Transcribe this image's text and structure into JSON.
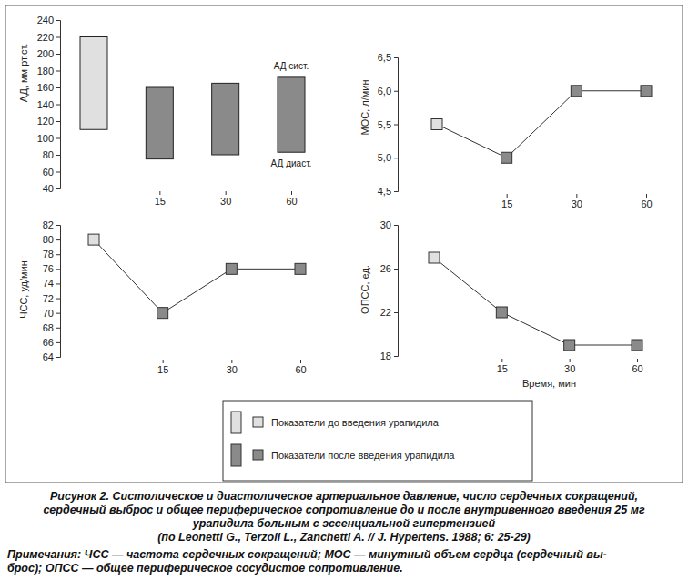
{
  "chart_data": [
    {
      "type": "range_bar",
      "ylabel": "АД, мм рт.ст.",
      "categories": [
        null,
        "15",
        "30",
        "60"
      ],
      "series": [
        {
          "name": "АД сист.",
          "values": [
            220,
            160,
            165,
            172
          ]
        },
        {
          "name": "АД диаст.",
          "values": [
            110,
            75,
            80,
            83
          ]
        }
      ],
      "colors": [
        "#e0e0e0",
        "#8a8a8a",
        "#8a8a8a",
        "#8a8a8a"
      ],
      "ylim": [
        40,
        240
      ],
      "yticks": [
        40,
        60,
        80,
        100,
        120,
        140,
        160,
        180,
        200,
        220,
        240
      ]
    },
    {
      "type": "line",
      "ylabel": "МОС, л/мин",
      "categories": [
        null,
        "15",
        "30",
        "60"
      ],
      "values": [
        5.5,
        5.0,
        6.0,
        6.0
      ],
      "colors": [
        "#e0e0e0",
        "#8a8a8a",
        "#8a8a8a",
        "#8a8a8a"
      ],
      "marker": "square",
      "ylim": [
        4.5,
        6.5
      ],
      "yticks": [
        {
          "value": 4.5,
          "label": "4,5"
        },
        {
          "value": 5.0,
          "label": "5,0"
        },
        {
          "value": 5.5,
          "label": "5,5"
        },
        {
          "value": 6.0,
          "label": "6,0"
        },
        {
          "value": 6.5,
          "label": "6,5"
        }
      ]
    },
    {
      "type": "line",
      "ylabel": "ЧСС, уд/мин",
      "categories": [
        null,
        "15",
        "30",
        "60"
      ],
      "values": [
        80,
        70,
        76,
        76
      ],
      "colors": [
        "#e0e0e0",
        "#8a8a8a",
        "#8a8a8a",
        "#8a8a8a"
      ],
      "marker": "square",
      "ylim": [
        64,
        82
      ],
      "yticks": [
        64,
        66,
        68,
        70,
        72,
        74,
        76,
        78,
        80,
        82
      ]
    },
    {
      "type": "line",
      "ylabel": "ОПСС, ед.",
      "xlabel": "Время, мин",
      "categories": [
        null,
        "15",
        "30",
        "60"
      ],
      "values": [
        27,
        22,
        19,
        19
      ],
      "colors": [
        "#e0e0e0",
        "#8a8a8a",
        "#8a8a8a",
        "#8a8a8a"
      ],
      "marker": "square",
      "ylim": [
        18,
        30
      ],
      "yticks": [
        18,
        22,
        26,
        30
      ]
    }
  ],
  "legend_entries": [
    {
      "name": "Показатели до введения урапидила",
      "color": "#e0e0e0"
    },
    {
      "name": "Показатели после введения урапидила",
      "color": "#8a8a8a"
    }
  ],
  "caption": [
    "Рисунок 2. Систолическое и диастолическое артериальное давление, число сердечных сокращений,",
    "сердечный выброс и общее периферическое сопротивление до и после внутривенного введения 25 мг",
    "урапидила больным с эссенциальной гипертензией",
    "(по Leonetti G., Terzoli L., Zanchetti A. // J. Hypertens. 1988; 6: 25-29)"
  ],
  "note": [
    "Примечания: ЧСС — частота сердечных сокращений; МОС — минутный объем сердца (сердечный вы-",
    "брос); ОПСС — общее периферическое сосудистое сопротивление."
  ]
}
